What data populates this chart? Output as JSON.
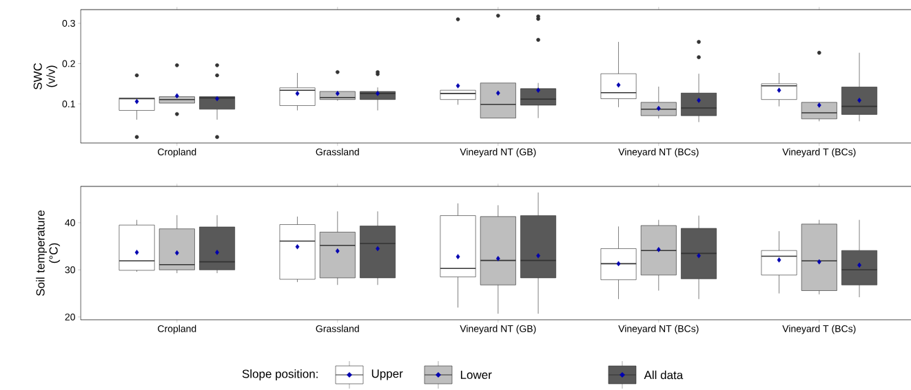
{
  "chart_data": [
    {
      "type": "box",
      "ylabel": "SWC (v/v)",
      "categories": [
        "Cropland",
        "Grassland",
        "Vineyard NT (GB)",
        "Vineyard NT (BCs)",
        "Vineyard T (BCs)"
      ],
      "ylim": [
        0.003,
        0.334
      ],
      "yticks": [
        0.1,
        0.2,
        0.3
      ],
      "series": [
        {
          "color": "#ffffff",
          "boxes": [
            {
              "low": 0.061,
              "q1": 0.084,
              "median": 0.113,
              "q3": 0.115,
              "high": 0.115,
              "mean": 0.106,
              "outliers": [
                0.171,
                0.018
              ]
            },
            {
              "low": 0.084,
              "q1": 0.096,
              "median": 0.134,
              "q3": 0.14,
              "high": 0.177,
              "mean": 0.126
            },
            {
              "low": 0.098,
              "q1": 0.111,
              "median": 0.126,
              "q3": 0.134,
              "high": 0.134,
              "mean": 0.145,
              "outliers": [
                0.31
              ]
            },
            {
              "low": 0.092,
              "q1": 0.113,
              "median": 0.128,
              "q3": 0.175,
              "high": 0.254,
              "mean": 0.147
            },
            {
              "low": 0.094,
              "q1": 0.111,
              "median": 0.145,
              "q3": 0.15,
              "high": 0.177,
              "mean": 0.134
            }
          ]
        },
        {
          "color": "#bebebe",
          "boxes": [
            {
              "low": 0.102,
              "q1": 0.102,
              "median": 0.111,
              "q3": 0.118,
              "high": 0.118,
              "mean": 0.12,
              "outliers": [
                0.196,
                0.075
              ]
            },
            {
              "low": 0.108,
              "q1": 0.111,
              "median": 0.116,
              "q3": 0.131,
              "high": 0.131,
              "mean": 0.126,
              "outliers": [
                0.179
              ]
            },
            {
              "low": 0.065,
              "q1": 0.065,
              "median": 0.099,
              "q3": 0.152,
              "high": 0.152,
              "mean": 0.127,
              "outliers": [
                0.319
              ]
            },
            {
              "low": 0.064,
              "q1": 0.071,
              "median": 0.087,
              "q3": 0.104,
              "high": 0.143,
              "mean": 0.089
            },
            {
              "low": 0.057,
              "q1": 0.063,
              "median": 0.078,
              "q3": 0.104,
              "high": 0.104,
              "mean": 0.097,
              "outliers": [
                0.227
              ]
            }
          ]
        },
        {
          "color": "#595959",
          "boxes": [
            {
              "low": 0.061,
              "q1": 0.087,
              "median": 0.115,
              "q3": 0.118,
              "high": 0.118,
              "mean": 0.113,
              "outliers": [
                0.196,
                0.171,
                0.018
              ]
            },
            {
              "low": 0.084,
              "q1": 0.111,
              "median": 0.126,
              "q3": 0.131,
              "high": 0.141,
              "mean": 0.126,
              "outliers": [
                0.179,
                0.174
              ]
            },
            {
              "low": 0.065,
              "q1": 0.097,
              "median": 0.112,
              "q3": 0.138,
              "high": 0.152,
              "mean": 0.134,
              "outliers": [
                0.317,
                0.311,
                0.259
              ]
            },
            {
              "low": 0.055,
              "q1": 0.071,
              "median": 0.09,
              "q3": 0.127,
              "high": 0.175,
              "mean": 0.109,
              "outliers": [
                0.254,
                0.216
              ]
            },
            {
              "low": 0.057,
              "q1": 0.074,
              "median": 0.094,
              "q3": 0.142,
              "high": 0.227,
              "mean": 0.109
            }
          ]
        }
      ]
    },
    {
      "type": "box",
      "ylabel": "Soil temperature (°C)",
      "categories": [
        "Cropland",
        "Grassland",
        "Vineyard NT (GB)",
        "Vineyard NT (BCs)",
        "Vineyard T (BCs)"
      ],
      "ylim": [
        19.4,
        47.7
      ],
      "yticks": [
        20,
        30,
        40
      ],
      "legend": "bottom",
      "legend_title": "Slope position:",
      "series": [
        {
          "name": "Upper",
          "color": "#ffffff",
          "boxes": [
            {
              "low": 29.6,
              "q1": 29.9,
              "median": 31.9,
              "q3": 39.5,
              "high": 40.6,
              "mean": 33.7
            },
            {
              "low": 27.4,
              "q1": 28.0,
              "median": 36.1,
              "q3": 39.6,
              "high": 41.3,
              "mean": 34.9
            },
            {
              "low": 22.0,
              "q1": 28.5,
              "median": 30.3,
              "q3": 41.5,
              "high": 44.1,
              "mean": 32.8
            },
            {
              "low": 23.8,
              "q1": 27.9,
              "median": 31.3,
              "q3": 34.5,
              "high": 39.2,
              "mean": 31.3
            },
            {
              "low": 25.0,
              "q1": 28.9,
              "median": 32.9,
              "q3": 34.1,
              "high": 38.2,
              "mean": 32.1
            }
          ]
        },
        {
          "name": "Lower",
          "color": "#bebebe",
          "boxes": [
            {
              "low": 29.3,
              "q1": 30.0,
              "median": 31.1,
              "q3": 38.7,
              "high": 41.6,
              "mean": 33.6
            },
            {
              "low": 26.8,
              "q1": 28.3,
              "median": 35.2,
              "q3": 38.0,
              "high": 42.4,
              "mean": 34.0
            },
            {
              "low": 20.7,
              "q1": 26.8,
              "median": 32.0,
              "q3": 41.3,
              "high": 43.7,
              "mean": 32.4
            },
            {
              "low": 25.6,
              "q1": 28.9,
              "median": 34.1,
              "q3": 39.4,
              "high": 40.6,
              "mean": 34.3
            },
            {
              "low": 24.8,
              "q1": 25.6,
              "median": 31.9,
              "q3": 39.7,
              "high": 40.6,
              "mean": 31.7
            }
          ]
        },
        {
          "name": "All data",
          "color": "#595959",
          "boxes": [
            {
              "low": 29.3,
              "q1": 30.0,
              "median": 31.7,
              "q3": 39.1,
              "high": 41.6,
              "mean": 33.7
            },
            {
              "low": 26.8,
              "q1": 28.3,
              "median": 35.6,
              "q3": 39.3,
              "high": 42.4,
              "mean": 34.5
            },
            {
              "low": 20.7,
              "q1": 28.3,
              "median": 32.0,
              "q3": 41.5,
              "high": 46.4,
              "mean": 33.0
            },
            {
              "low": 23.8,
              "q1": 28.1,
              "median": 33.5,
              "q3": 38.8,
              "high": 41.5,
              "mean": 33.0
            },
            {
              "low": 24.2,
              "q1": 26.8,
              "median": 30.0,
              "q3": 34.1,
              "high": 40.6,
              "mean": 31.0
            }
          ]
        }
      ]
    }
  ]
}
